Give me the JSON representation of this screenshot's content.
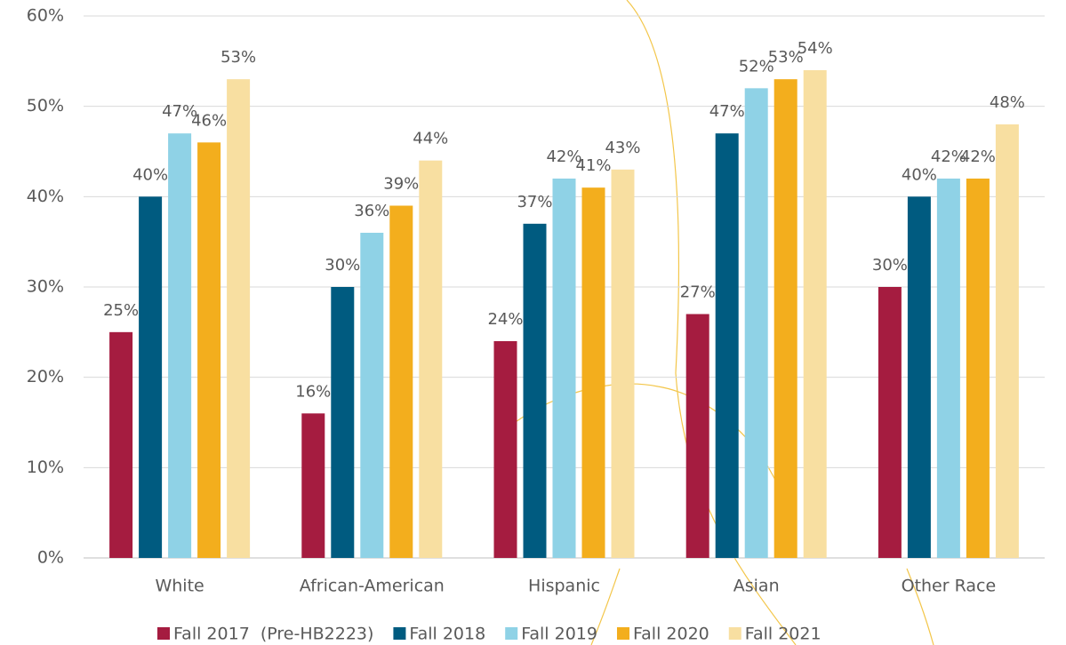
{
  "chart_data": {
    "type": "bar",
    "categories": [
      "White",
      "African-American",
      "Hispanic",
      "Asian",
      "Other Race"
    ],
    "series": [
      {
        "name": "Fall 2017  (Pre-HB2223)",
        "color": "#a51c40",
        "values": [
          25,
          16,
          24,
          27,
          30
        ],
        "value_labels": [
          "25%",
          "16%",
          "24%",
          "27%",
          "30%"
        ]
      },
      {
        "name": "Fall 2018",
        "color": "#005b80",
        "values": [
          40,
          30,
          37,
          47,
          40
        ],
        "value_labels": [
          "40%",
          "30%",
          "37%",
          "47%",
          "40%"
        ]
      },
      {
        "name": "Fall 2019",
        "color": "#8fd2e6",
        "values": [
          47,
          36,
          42,
          52,
          42
        ],
        "value_labels": [
          "47%",
          "36%",
          "42%",
          "52%",
          "42%"
        ]
      },
      {
        "name": "Fall 2020",
        "color": "#f3ae1d",
        "values": [
          46,
          39,
          41,
          53,
          42
        ],
        "value_labels": [
          "46%",
          "39%",
          "41%",
          "53%",
          "42%"
        ]
      },
      {
        "name": "Fall 2021",
        "color": "#f8dfa1",
        "values": [
          53,
          44,
          43,
          54,
          48
        ],
        "value_labels": [
          "53%",
          "44%",
          "43%",
          "54%",
          "48%"
        ]
      }
    ],
    "ylim": [
      0,
      60
    ],
    "yticks": [
      {
        "value": 0,
        "label": "0%"
      },
      {
        "value": 10,
        "label": "10%"
      },
      {
        "value": 20,
        "label": "20%"
      },
      {
        "value": 30,
        "label": "30%"
      },
      {
        "value": 40,
        "label": "40%"
      },
      {
        "value": 50,
        "label": "50%"
      },
      {
        "value": 60,
        "label": "60%"
      }
    ],
    "grid": true,
    "legend": "bottom"
  }
}
